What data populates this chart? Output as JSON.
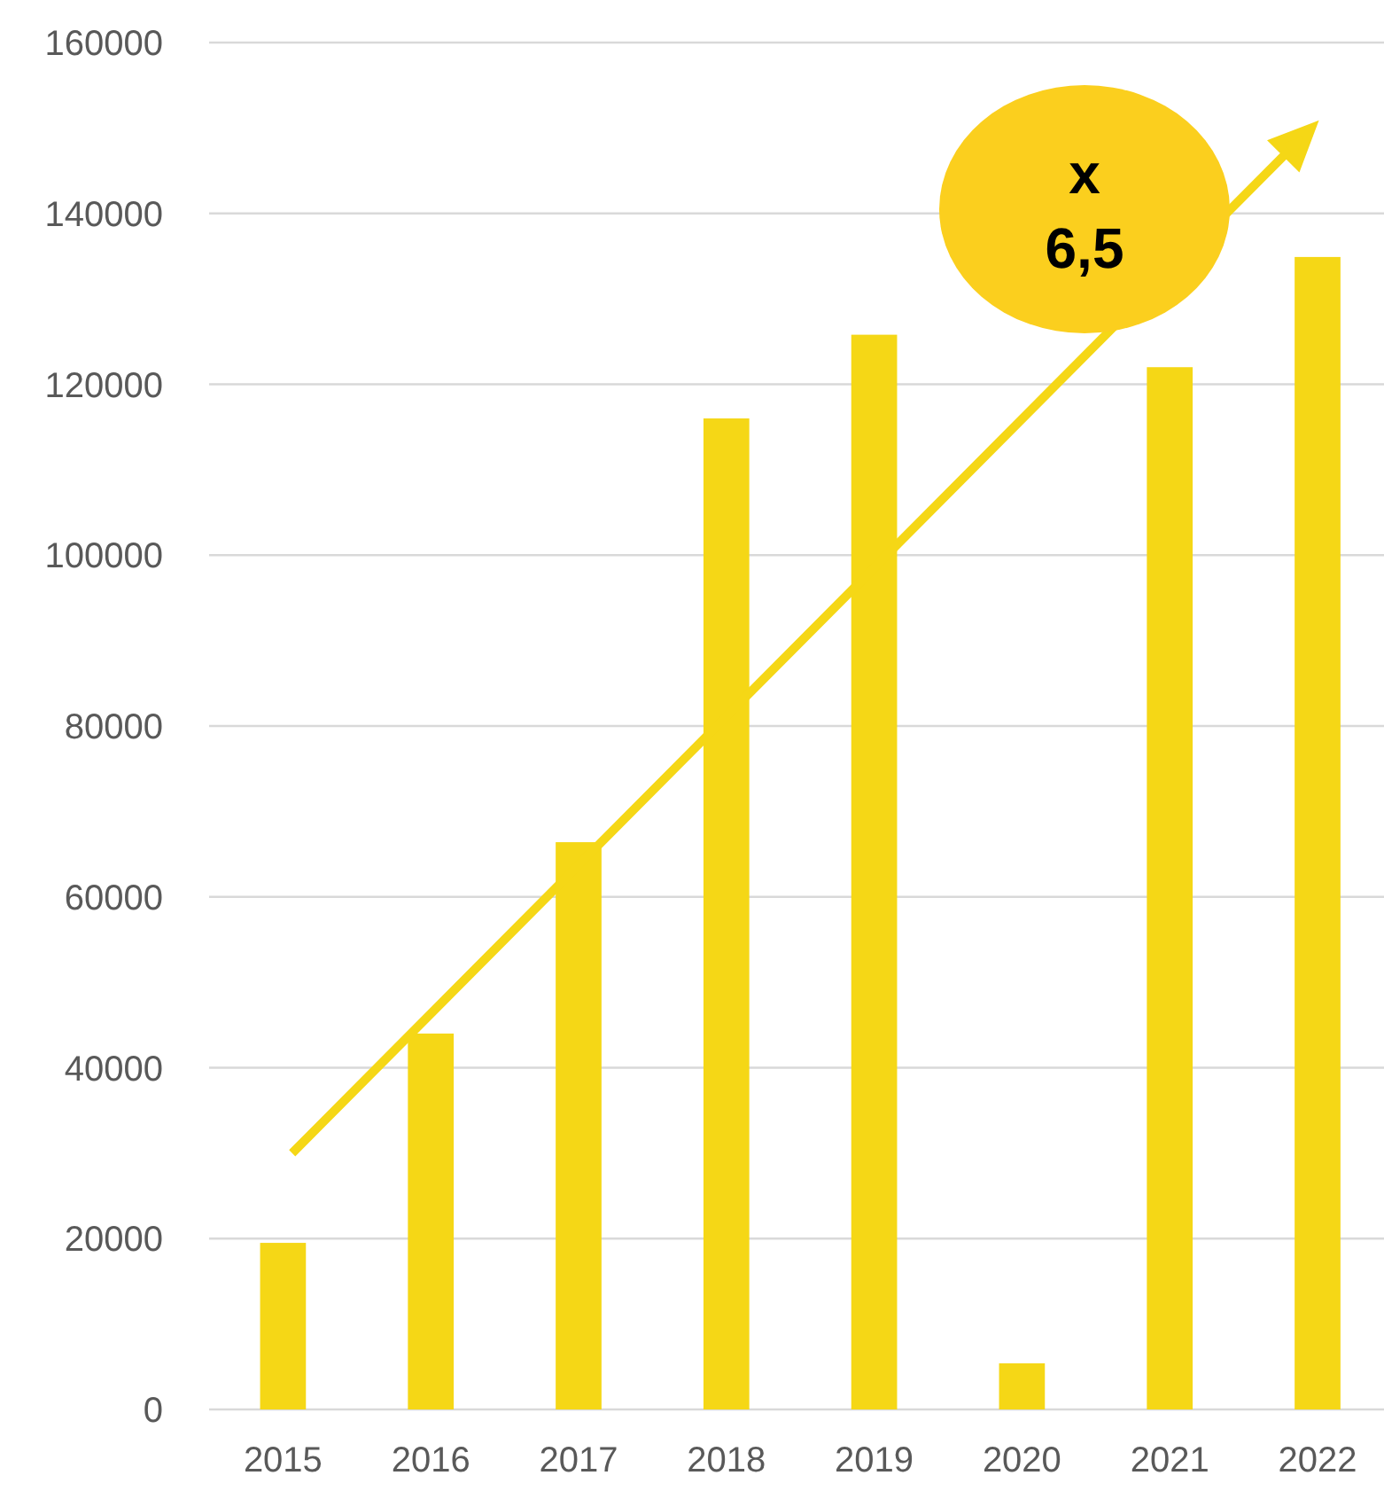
{
  "chart_data": {
    "type": "bar",
    "categories": [
      "2015",
      "2016",
      "2017",
      "2018",
      "2019",
      "2020",
      "2021",
      "2022"
    ],
    "values": [
      19500,
      44000,
      66400,
      116000,
      125800,
      5400,
      122000,
      134900
    ],
    "color": "#f5d716",
    "ylim": [
      0,
      160000
    ],
    "yticks": [
      0,
      20000,
      40000,
      60000,
      80000,
      100000,
      120000,
      140000,
      160000
    ],
    "grid": "y",
    "annotations": [
      "x 6,5"
    ]
  }
}
